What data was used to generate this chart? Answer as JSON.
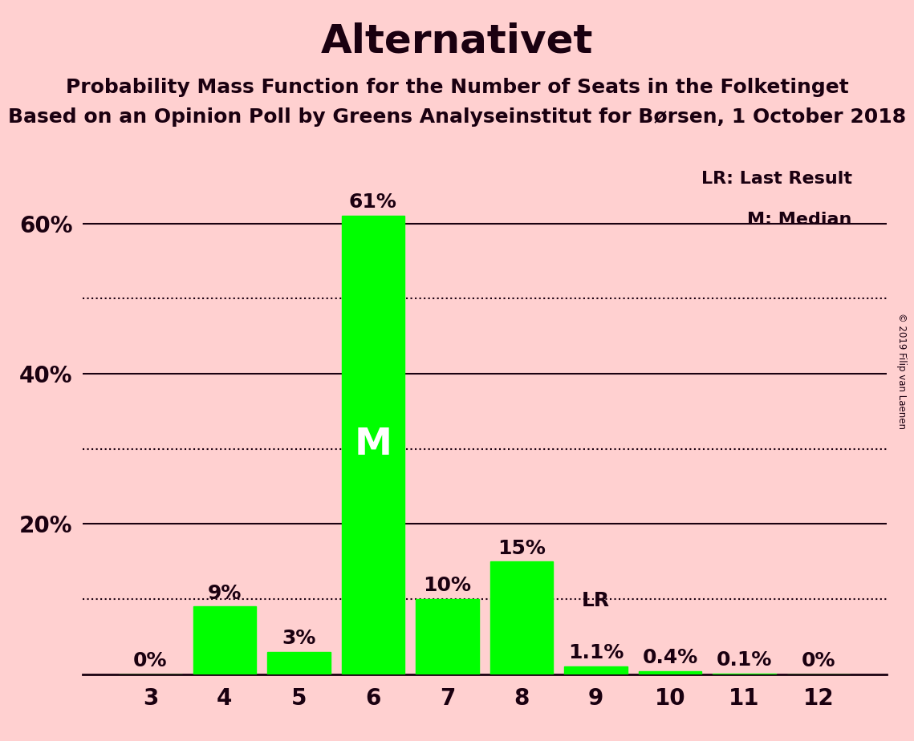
{
  "title": "Alternativet",
  "subtitle1": "Probability Mass Function for the Number of Seats in the Folketinget",
  "subtitle2": "Based on an Opinion Poll by Greens Analyseinstitut for Børsen, 1 October 2018",
  "copyright": "© 2019 Filip van Laenen",
  "categories": [
    3,
    4,
    5,
    6,
    7,
    8,
    9,
    10,
    11,
    12
  ],
  "values": [
    0.0,
    9.0,
    3.0,
    61.0,
    10.0,
    15.0,
    1.1,
    0.4,
    0.1,
    0.0
  ],
  "labels": [
    "0%",
    "9%",
    "3%",
    "61%",
    "10%",
    "15%",
    "1.1%",
    "0.4%",
    "0.1%",
    "0%"
  ],
  "bar_color": "#00FF00",
  "background_color": "#FFD0D0",
  "median_seat": 6,
  "last_result_seat": 9,
  "ylim": [
    0,
    70
  ],
  "solid_lines": [
    20,
    40,
    60
  ],
  "dotted_lines": [
    10,
    30,
    50
  ],
  "legend_lr_text": "LR: Last Result",
  "legend_m_text": "M: Median",
  "title_fontsize": 36,
  "subtitle_fontsize": 18,
  "label_fontsize": 18,
  "axis_fontsize": 20,
  "text_color": "#1a0010"
}
